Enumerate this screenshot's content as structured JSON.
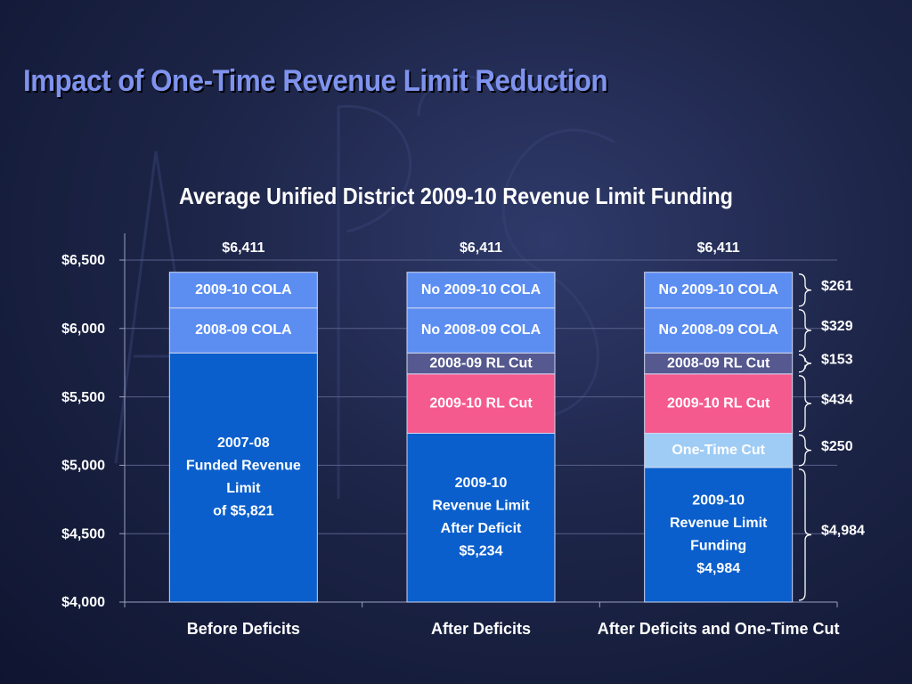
{
  "slide": {
    "title": "Impact of One-Time Revenue Limit Reduction"
  },
  "colors": {
    "background": "#1d2548",
    "title": "#7f93ee",
    "base_blue": "#0a5fcc",
    "cola_blue": "#5c8ef2",
    "rl_cut_2008": "#56598f",
    "rl_cut_2009": "#f55a8e",
    "one_time_cut": "#9fccf5",
    "text": "#ffffff"
  },
  "chart_data": {
    "type": "bar",
    "stacked": true,
    "title": "Average Unified District 2009-10 Revenue Limit Funding",
    "categories": [
      "Before Deficits",
      "After Deficits",
      "After Deficits and One-Time Cut"
    ],
    "ylim": [
      4000,
      6500
    ],
    "yticks": [
      4000,
      4500,
      5000,
      5500,
      6000,
      6500
    ],
    "ytick_labels": [
      "$4,000",
      "$4,500",
      "$5,000",
      "$5,500",
      "$6,000",
      "$6,500"
    ],
    "grid": true,
    "totals": [
      "$6,411",
      "$6,411",
      "$6,411"
    ],
    "stacks": [
      [
        {
          "label": "2007-08\nFunded Revenue\nLimit\nof $5,821",
          "value": 1821,
          "color": "#0a5fcc"
        },
        {
          "label": "2008-09 COLA",
          "value": 329,
          "color": "#5c8ef2"
        },
        {
          "label": "2009-10 COLA",
          "value": 261,
          "color": "#5c8ef2"
        }
      ],
      [
        {
          "label": "2009-10\nRevenue Limit\nAfter Deficit\n$5,234",
          "value": 1234,
          "color": "#0a5fcc"
        },
        {
          "label": "2009-10 RL Cut",
          "value": 434,
          "color": "#f55a8e"
        },
        {
          "label": "2008-09 RL Cut",
          "value": 153,
          "color": "#56598f"
        },
        {
          "label": "No 2008-09 COLA",
          "value": 329,
          "color": "#5c8ef2"
        },
        {
          "label": "No 2009-10 COLA",
          "value": 261,
          "color": "#5c8ef2"
        }
      ],
      [
        {
          "label": "2009-10\nRevenue Limit\nFunding\n$4,984",
          "value": 984,
          "color": "#0a5fcc"
        },
        {
          "label": "One-Time Cut",
          "value": 250,
          "color": "#9fccf5"
        },
        {
          "label": "2009-10 RL Cut",
          "value": 434,
          "color": "#f55a8e"
        },
        {
          "label": "2008-09 RL Cut",
          "value": 153,
          "color": "#56598f"
        },
        {
          "label": "No 2008-09 COLA",
          "value": 329,
          "color": "#5c8ef2"
        },
        {
          "label": "No 2009-10 COLA",
          "value": 261,
          "color": "#5c8ef2"
        }
      ]
    ],
    "annotations": [
      {
        "label": "$261",
        "from": 6150,
        "to": 6411
      },
      {
        "label": "$329",
        "from": 5821,
        "to": 6150
      },
      {
        "label": "$153",
        "from": 5668,
        "to": 5821
      },
      {
        "label": "$434",
        "from": 5234,
        "to": 5668
      },
      {
        "label": "$250",
        "from": 4984,
        "to": 5234
      },
      {
        "label": "$4,984",
        "from": 4000,
        "to": 4984
      }
    ]
  }
}
